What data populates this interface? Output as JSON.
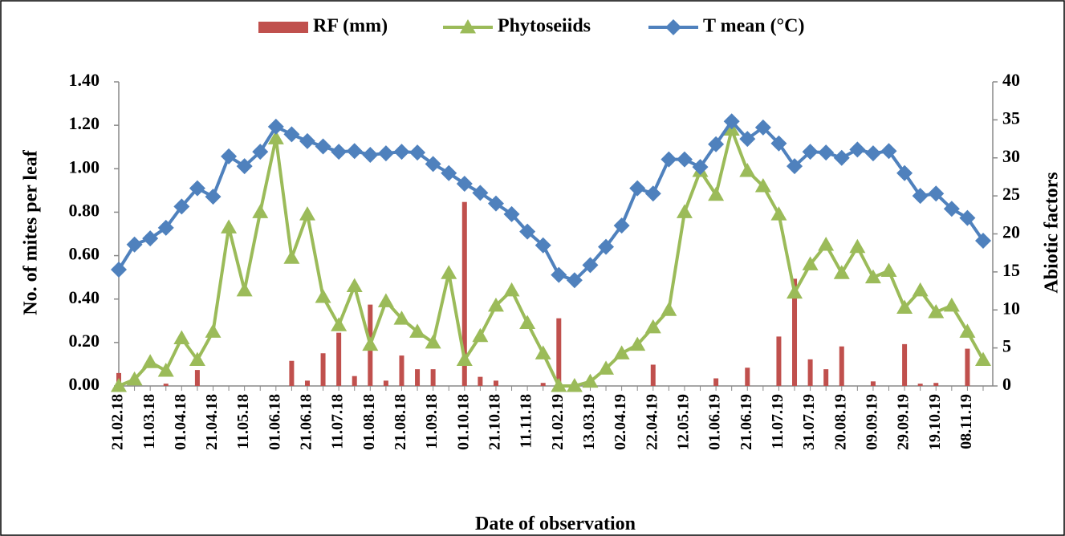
{
  "chart_data": {
    "type": "bar",
    "xlabel": "Date of observation",
    "ylabel": "No. of mites per leaf",
    "y2label": "Abiotic factors",
    "categories": [
      "21.02.18",
      null,
      "11.03.18",
      null,
      "01.04.18",
      null,
      "21.04.18",
      null,
      "11.05.18",
      null,
      "01.06.18",
      null,
      "21.06.18",
      null,
      "11.07.18",
      null,
      "01.08.18",
      null,
      "21.08.18",
      null,
      "11.09.18",
      null,
      "01.10.18",
      null,
      "21.10.18",
      null,
      "11.11.18",
      null,
      "21.02.19",
      null,
      "13.03.19",
      null,
      "02.04.19",
      null,
      "22.04.19",
      null,
      "12.05.19",
      null,
      "01.06.19",
      null,
      "21.06.19",
      null,
      "11.07.19",
      null,
      "31.07.19",
      null,
      "20.08.19",
      null,
      "09.09.19",
      null,
      "29.09.19",
      null,
      "19.10.19",
      null,
      "08.11.19",
      null
    ],
    "series": [
      {
        "name": "RF (mm)",
        "type": "bar",
        "axis": "y2",
        "color": "#c0504d",
        "values": [
          1.7,
          0,
          0,
          0.3,
          0,
          2.1,
          0,
          0,
          0,
          0,
          0,
          3.3,
          0.7,
          4.3,
          7.0,
          1.3,
          10.7,
          0.7,
          4.0,
          2.2,
          2.2,
          0,
          24.2,
          1.2,
          0.7,
          0,
          0,
          0.4,
          8.9,
          0,
          0,
          0,
          0,
          0,
          2.8,
          0,
          0,
          0,
          1.0,
          0,
          2.4,
          0,
          6.5,
          14.1,
          3.5,
          2.2,
          5.2,
          0,
          0.6,
          0,
          5.5,
          0.3,
          0.4,
          0,
          4.9,
          0
        ]
      },
      {
        "name": "Phytoseiids",
        "type": "line",
        "marker": "triangle",
        "color": "#9bbb59",
        "values": [
          0.0,
          0.03,
          0.11,
          0.07,
          0.22,
          0.12,
          0.25,
          0.73,
          0.44,
          0.8,
          1.14,
          0.59,
          0.79,
          0.41,
          0.28,
          0.46,
          0.19,
          0.39,
          0.31,
          0.25,
          0.2,
          0.52,
          0.12,
          0.23,
          0.37,
          0.44,
          0.29,
          0.15,
          0.0,
          0.0,
          0.02,
          0.08,
          0.15,
          0.19,
          0.27,
          0.35,
          0.8,
          0.99,
          0.88,
          1.18,
          0.99,
          0.92,
          0.79,
          0.43,
          0.56,
          0.65,
          0.52,
          0.64,
          0.5,
          0.53,
          0.36,
          0.44,
          0.34,
          0.37,
          0.25,
          0.12
        ]
      },
      {
        "name": "T mean (°C)",
        "type": "line",
        "marker": "diamond",
        "axis": "y2",
        "color": "#4f81bd",
        "values": [
          15.3,
          18.6,
          19.4,
          20.8,
          23.6,
          26.0,
          24.9,
          30.2,
          28.9,
          30.8,
          34.1,
          33.1,
          32.2,
          31.5,
          30.8,
          30.9,
          30.4,
          30.6,
          30.8,
          30.7,
          29.2,
          28.0,
          26.6,
          25.4,
          24.0,
          22.6,
          20.3,
          18.5,
          14.6,
          13.9,
          15.9,
          18.3,
          21.1,
          26.0,
          25.3,
          29.8,
          29.8,
          28.8,
          31.8,
          34.8,
          32.5,
          34.0,
          31.9,
          28.9,
          30.8,
          30.7,
          30.0,
          31.1,
          30.6,
          30.9,
          28.0,
          25.0,
          25.3,
          23.3,
          22.1,
          19.1
        ]
      }
    ],
    "ylim": [
      0,
      1.4
    ],
    "yticks": [
      {
        "value": 0,
        "label": "0.00"
      },
      {
        "value": 0.2,
        "label": "0.20"
      },
      {
        "value": 0.4,
        "label": "0.40"
      },
      {
        "value": 0.6,
        "label": "0.60"
      },
      {
        "value": 0.8,
        "label": "0.80"
      },
      {
        "value": 1,
        "label": "1.00"
      },
      {
        "value": 1.2,
        "label": "1.20"
      },
      {
        "value": 1.4,
        "label": "1.40"
      }
    ],
    "y2lim": [
      0,
      40
    ],
    "y2ticks": [
      0,
      5,
      10,
      15,
      20,
      25,
      30,
      35,
      40
    ],
    "grid": false,
    "legend": "top"
  }
}
